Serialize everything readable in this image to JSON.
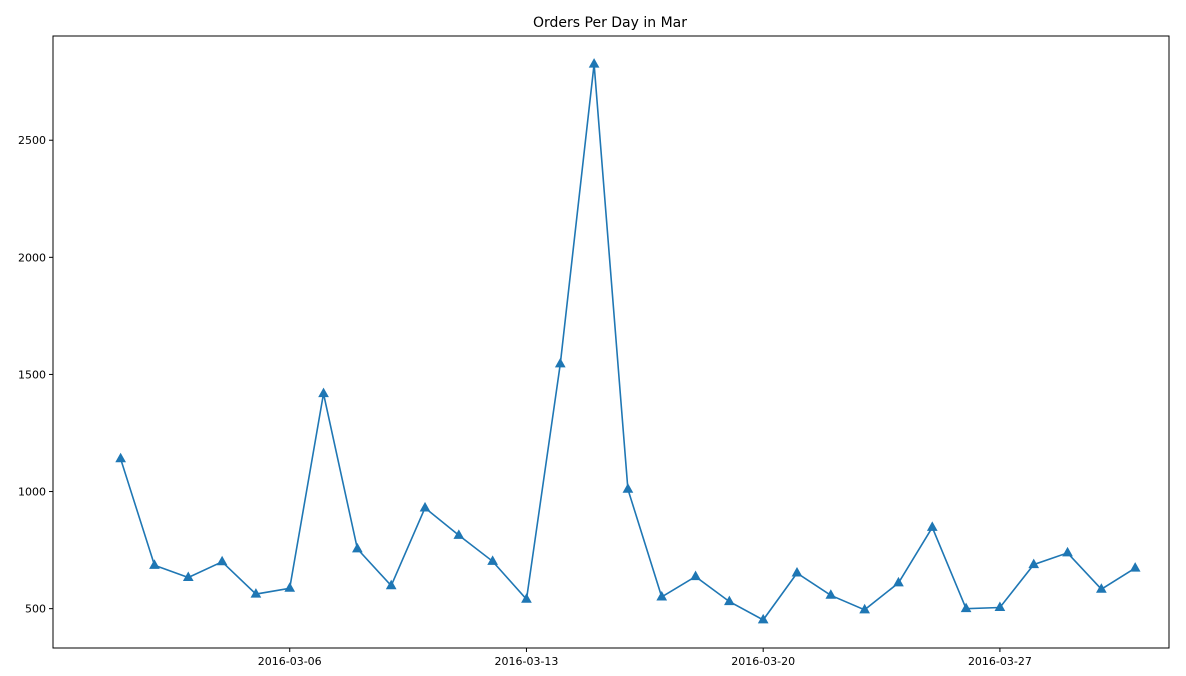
{
  "chart_data": {
    "type": "line",
    "title": "Orders Per Day in Mar",
    "xlabel": "",
    "ylabel": "",
    "x": [
      "2016-03-01",
      "2016-03-02",
      "2016-03-03",
      "2016-03-04",
      "2016-03-05",
      "2016-03-06",
      "2016-03-07",
      "2016-03-08",
      "2016-03-09",
      "2016-03-10",
      "2016-03-11",
      "2016-03-12",
      "2016-03-13",
      "2016-03-14",
      "2016-03-15",
      "2016-03-16",
      "2016-03-17",
      "2016-03-18",
      "2016-03-19",
      "2016-03-20",
      "2016-03-21",
      "2016-03-22",
      "2016-03-23",
      "2016-03-24",
      "2016-03-25",
      "2016-03-26",
      "2016-03-27",
      "2016-03-28",
      "2016-03-29",
      "2016-03-30",
      "2016-03-31"
    ],
    "series": [
      {
        "values": [
          1140,
          685,
          633,
          700,
          562,
          587,
          1418,
          755,
          598,
          930,
          813,
          702,
          540,
          1545,
          2825,
          1010,
          550,
          637,
          530,
          452,
          652,
          557,
          495,
          610,
          847,
          500,
          505,
          688,
          738,
          583,
          673
        ],
        "color": "#1f77b4",
        "marker": "triangle-up"
      }
    ],
    "x_ticks": [
      "2016-03-06",
      "2016-03-13",
      "2016-03-20",
      "2016-03-27"
    ],
    "y_ticks": [
      500,
      1000,
      1500,
      2000,
      2500
    ],
    "xlim": [
      "2016-02-28",
      "2016-04-01"
    ],
    "ylim": [
      332,
      2945
    ],
    "grid": false,
    "legend": "none"
  }
}
